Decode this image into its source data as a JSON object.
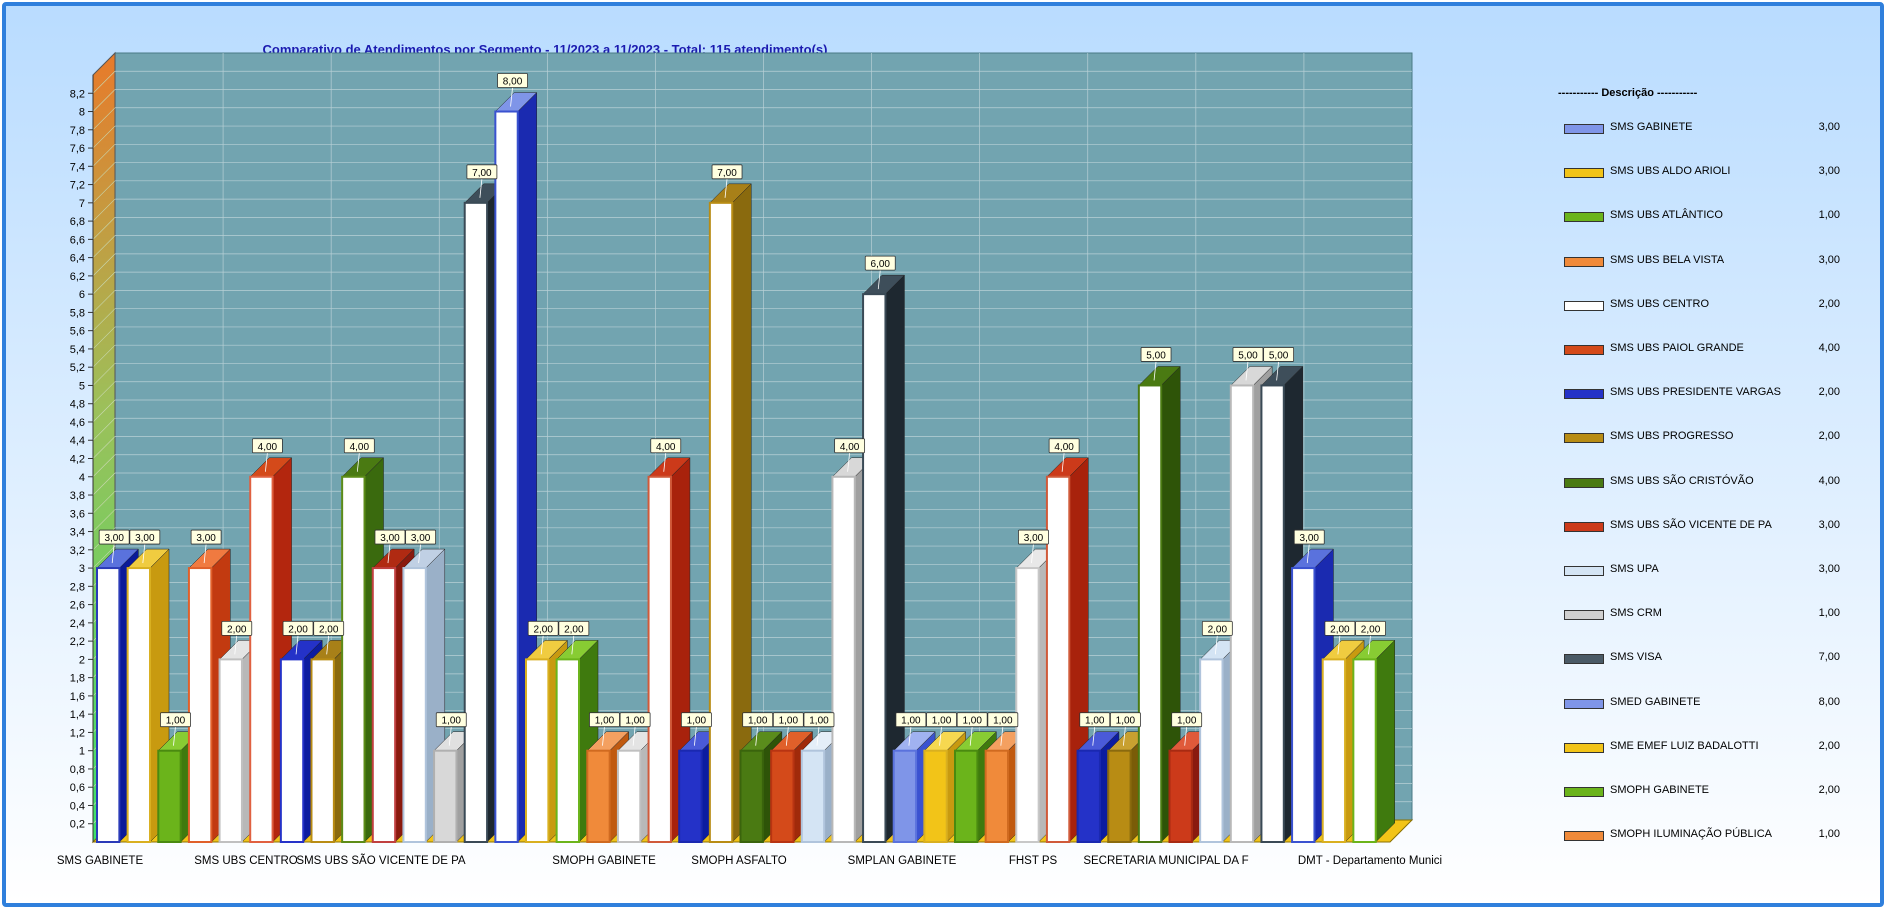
{
  "chart_data": {
    "type": "bar",
    "title": "Comparativo  de  Atendimentos  por  Segmento  -  11/2023  a  11/2023  -  Total:  115  atendimento(s)",
    "ylim": [
      0,
      8.4
    ],
    "yticks": [
      "0,2",
      "0,4",
      "0,6",
      "0,8",
      "1",
      "1,2",
      "1,4",
      "1,6",
      "1,8",
      "2",
      "2,2",
      "2,4",
      "2,6",
      "2,8",
      "3",
      "3,2",
      "3,4",
      "3,6",
      "3,8",
      "4",
      "4,2",
      "4,4",
      "4,6",
      "4,8",
      "5",
      "5,2",
      "5,4",
      "5,6",
      "5,8",
      "6",
      "6,2",
      "6,4",
      "6,6",
      "6,8",
      "7",
      "7,2",
      "7,4",
      "7,6",
      "7,8",
      "8",
      "8,2"
    ],
    "grid": true,
    "legend_position": "right",
    "legend_title": "----------- Descrição -----------",
    "categories": [
      "SMS GABINETE",
      "SMS UBS CENTRO",
      "SMS UBS SÃO VICENTE DE PA",
      "SMOPH GABINETE",
      "SMOPH ASFALTO",
      "SMPLAN GABINETE",
      "FHST PS",
      "SECRETARIA MUNICIPAL DA F",
      "DMT - Departamento Munici"
    ],
    "series": [
      {
        "name": "SMS GABINETE",
        "color": "#7f95e8",
        "total": "3,00"
      },
      {
        "name": "SMS UBS ALDO ARIOLI",
        "color": "#f2c418",
        "total": "3,00"
      },
      {
        "name": "SMS UBS ATLÂNTICO",
        "color": "#6bb41b",
        "total": "1,00"
      },
      {
        "name": "SMS UBS BELA VISTA",
        "color": "#f08a3a",
        "total": "3,00"
      },
      {
        "name": "SMS UBS CENTRO",
        "color": "#ffffff",
        "total": "2,00"
      },
      {
        "name": "SMS UBS PAIOL GRANDE",
        "color": "#d44a1a",
        "total": "4,00"
      },
      {
        "name": "SMS UBS PRESIDENTE VARGAS",
        "color": "#2432c8",
        "total": "2,00"
      },
      {
        "name": "SMS UBS PROGRESSO",
        "color": "#b88c14",
        "total": "2,00"
      },
      {
        "name": "SMS UBS SÃO CRISTÓVÃO",
        "color": "#4a7a12",
        "total": "4,00"
      },
      {
        "name": "SMS UBS SÃO VICENTE DE PA",
        "color": "#cc3a1a",
        "total": "3,00"
      },
      {
        "name": "SMS UPA",
        "color": "#d4e4f4",
        "total": "3,00"
      },
      {
        "name": "SMS CRM",
        "color": "#d0d0d0",
        "total": "1,00"
      },
      {
        "name": "SMS VISA",
        "color": "#4a5a66",
        "total": "7,00"
      },
      {
        "name": "SMED GABINETE",
        "color": "#7f95e8",
        "total": "8,00"
      },
      {
        "name": "SME EMEF LUIZ BADALOTTI",
        "color": "#f2c418",
        "total": "2,00"
      },
      {
        "name": "SMOPH GABINETE",
        "color": "#6bb41b",
        "total": "2,00"
      },
      {
        "name": "SMOPH ILUMINAÇÃO PÚBLICA",
        "color": "#f08a3a",
        "total": "1,00"
      }
    ],
    "bars": [
      {
        "value": 3,
        "label": "3,00",
        "face": "#ffffff",
        "side": "#0a1a99",
        "edge": "#2a3ab8",
        "top": "#5a72dd"
      },
      {
        "value": 3,
        "label": "3,00",
        "face": "#ffffff",
        "side": "#c89a10",
        "edge": "#d9b020",
        "top": "#f0cc40"
      },
      {
        "value": 1,
        "label": "1,00",
        "face": "#6bb41b",
        "side": "#3f7a0e",
        "edge": "#4a8a10",
        "top": "#88cc33"
      },
      {
        "value": 3,
        "label": "3,00",
        "face": "#ffffff",
        "side": "#c23a10",
        "edge": "#e0602a",
        "top": "#f07a40"
      },
      {
        "value": 2,
        "label": "2,00",
        "face": "#ffffff",
        "side": "#b8b8b8",
        "edge": "#c0c0c0",
        "top": "#e4e4e4"
      },
      {
        "value": 4,
        "label": "4,00",
        "face": "#ffffff",
        "side": "#b3260e",
        "edge": "#e06040",
        "top": "#d44a1a"
      },
      {
        "value": 2,
        "label": "2,00",
        "face": "#ffffff",
        "side": "#0c1ca0",
        "edge": "#2432c8",
        "top": "#2432c8"
      },
      {
        "value": 2,
        "label": "2,00",
        "face": "#ffffff",
        "side": "#8a6a0e",
        "edge": "#b88c14",
        "top": "#a88018"
      },
      {
        "value": 4,
        "label": "4,00",
        "face": "#ffffff",
        "side": "#3a6a0e",
        "edge": "#5c8c18",
        "top": "#4a7a12"
      },
      {
        "value": 3,
        "label": "3,00",
        "face": "#ffffff",
        "side": "#8a1a0e",
        "edge": "#c04040",
        "top": "#b02a12"
      },
      {
        "value": 3,
        "label": "3,00",
        "face": "#ffffff",
        "side": "#9ab0c8",
        "edge": "#b0c4dc",
        "top": "#c0d0e4"
      },
      {
        "value": 1,
        "label": "1,00",
        "face": "#d8d8d8",
        "side": "#a0a0a0",
        "edge": "#b0b0b0",
        "top": "#e0e0e0"
      },
      {
        "value": 7,
        "label": "7,00",
        "face": "#ffffff",
        "side": "#1e2830",
        "edge": "#3a4a56",
        "top": "#3e4e5a"
      },
      {
        "value": 8,
        "label": "8,00",
        "face": "#ffffff",
        "side": "#1a2ab0",
        "edge": "#3a52d0",
        "top": "#7f95e8"
      },
      {
        "value": 2,
        "label": "2,00",
        "face": "#ffffff",
        "side": "#c89a10",
        "edge": "#d9b020",
        "top": "#f0cc40"
      },
      {
        "value": 2,
        "label": "2,00",
        "face": "#ffffff",
        "side": "#3f7a0e",
        "edge": "#6bb41b",
        "top": "#88cc33"
      },
      {
        "value": 1,
        "label": "1,00",
        "face": "#f08a3a",
        "side": "#c05a10",
        "edge": "#d06a20",
        "top": "#f4a060"
      },
      {
        "value": 1,
        "label": "1,00",
        "face": "#ffffff",
        "side": "#b8b8b8",
        "edge": "#c0c0c0",
        "top": "#e4e4e4"
      },
      {
        "value": 4,
        "label": "4,00",
        "face": "#ffffff",
        "side": "#a8220c",
        "edge": "#d05a3a",
        "top": "#cc3a1a"
      },
      {
        "value": 1,
        "label": "1,00",
        "face": "#2432c8",
        "side": "#0c1ca0",
        "edge": "#1a28b0",
        "top": "#4a5ad8"
      },
      {
        "value": 7,
        "label": "7,00",
        "face": "#ffffff",
        "side": "#8a6a0e",
        "edge": "#b88c14",
        "top": "#a88018"
      },
      {
        "value": 1,
        "label": "1,00",
        "face": "#4a7a12",
        "side": "#2e5408",
        "edge": "#3a640c",
        "top": "#5a8c1c"
      },
      {
        "value": 1,
        "label": "1,00",
        "face": "#d44a1a",
        "side": "#a02a0a",
        "edge": "#b83412",
        "top": "#e0602a"
      },
      {
        "value": 1,
        "label": "1,00",
        "face": "#d4e4f4",
        "side": "#9ab0c8",
        "edge": "#b0c4dc",
        "top": "#e4eef8"
      },
      {
        "value": 4,
        "label": "4,00",
        "face": "#ffffff",
        "side": "#a0a0a0",
        "edge": "#b8b8b8",
        "top": "#d8d8d8"
      },
      {
        "value": 6,
        "label": "6,00",
        "face": "#ffffff",
        "side": "#1e2830",
        "edge": "#3a4a56",
        "top": "#3e4e5a"
      },
      {
        "value": 1,
        "label": "1,00",
        "face": "#7f95e8",
        "side": "#3a52d0",
        "edge": "#5a72dd",
        "top": "#a0b2f0"
      },
      {
        "value": 1,
        "label": "1,00",
        "face": "#f2c418",
        "side": "#c89a10",
        "edge": "#d9b020",
        "top": "#f6d850"
      },
      {
        "value": 1,
        "label": "1,00",
        "face": "#6bb41b",
        "side": "#3f7a0e",
        "edge": "#4a8a10",
        "top": "#88cc33"
      },
      {
        "value": 1,
        "label": "1,00",
        "face": "#f08a3a",
        "side": "#c05a10",
        "edge": "#d06a20",
        "top": "#f4a060"
      },
      {
        "value": 3,
        "label": "3,00",
        "face": "#ffffff",
        "side": "#b8b8b8",
        "edge": "#c8c8c8",
        "top": "#e8e8e8"
      },
      {
        "value": 4,
        "label": "4,00",
        "face": "#ffffff",
        "side": "#a8220c",
        "edge": "#d05a3a",
        "top": "#cc3a1a"
      },
      {
        "value": 1,
        "label": "1,00",
        "face": "#2432c8",
        "side": "#0c1ca0",
        "edge": "#1a28b0",
        "top": "#4a5ad8"
      },
      {
        "value": 1,
        "label": "1,00",
        "face": "#b88c14",
        "side": "#7a5c08",
        "edge": "#8a6a0e",
        "top": "#c8a030"
      },
      {
        "value": 5,
        "label": "5,00",
        "face": "#ffffff",
        "side": "#2e5408",
        "edge": "#4a7a12",
        "top": "#4a7a12"
      },
      {
        "value": 1,
        "label": "1,00",
        "face": "#cc3a1a",
        "side": "#8a1a0e",
        "edge": "#a82a12",
        "top": "#e05a3a"
      },
      {
        "value": 2,
        "label": "2,00",
        "face": "#ffffff",
        "side": "#9ab0c8",
        "edge": "#b0c4dc",
        "top": "#d4e4f4"
      },
      {
        "value": 5,
        "label": "5,00",
        "face": "#ffffff",
        "side": "#a0a0a0",
        "edge": "#b8b8b8",
        "top": "#d8d8d8"
      },
      {
        "value": 5,
        "label": "5,00",
        "face": "#ffffff",
        "side": "#1e2830",
        "edge": "#3a4a56",
        "top": "#3e4e5a"
      },
      {
        "value": 3,
        "label": "3,00",
        "face": "#ffffff",
        "side": "#1a2ab0",
        "edge": "#3a52d0",
        "top": "#5a72dd"
      },
      {
        "value": 2,
        "label": "2,00",
        "face": "#ffffff",
        "side": "#c89a10",
        "edge": "#d9b020",
        "top": "#f0cc40"
      },
      {
        "value": 2,
        "label": "2,00",
        "face": "#ffffff",
        "side": "#3f7a0e",
        "edge": "#6bb41b",
        "top": "#88cc33"
      }
    ]
  }
}
